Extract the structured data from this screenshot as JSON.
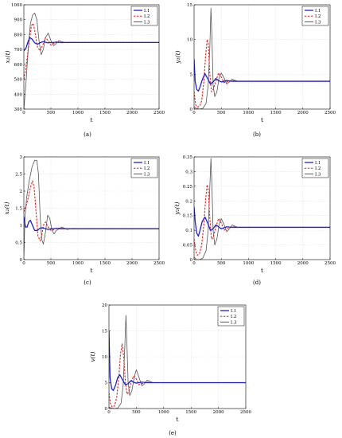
{
  "chart_data": [
    {
      "type": "line",
      "caption": "(a)",
      "ylabel": "x₁(t)",
      "xlabel": "t",
      "xlim": [
        0,
        2500
      ],
      "ylim": [
        300,
        1000
      ],
      "xticks": [
        0,
        500,
        1000,
        1500,
        2000,
        2500
      ],
      "yticks": [
        300,
        400,
        500,
        600,
        700,
        800,
        900,
        1000
      ],
      "grid": true,
      "legend": "top-right",
      "series": [
        {
          "name": "I.1",
          "color": "#1f1fcf",
          "dash": "solid",
          "x": [
            0,
            40,
            80,
            110,
            150,
            200,
            250,
            300,
            350,
            400,
            450,
            500,
            600,
            700,
            800,
            1000,
            1500,
            2500
          ],
          "y": [
            690,
            710,
            755,
            780,
            770,
            745,
            735,
            745,
            752,
            748,
            744,
            747,
            748,
            747,
            747,
            747,
            747,
            747
          ]
        },
        {
          "name": "I.2",
          "color": "#e02020",
          "dash": "dashed",
          "x": [
            0,
            30,
            60,
            100,
            140,
            170,
            200,
            250,
            300,
            350,
            400,
            450,
            500,
            550,
            600,
            700,
            800,
            1000,
            1500,
            2500
          ],
          "y": [
            500,
            560,
            640,
            760,
            860,
            875,
            830,
            720,
            690,
            730,
            780,
            760,
            730,
            740,
            752,
            745,
            748,
            747,
            747,
            747
          ]
        },
        {
          "name": "I.3",
          "color": "#555555",
          "dash": "solid",
          "x": [
            0,
            40,
            80,
            120,
            160,
            200,
            240,
            280,
            320,
            360,
            400,
            450,
            500,
            550,
            600,
            650,
            700,
            800,
            900,
            1000,
            1500,
            2500
          ],
          "y": [
            300,
            480,
            700,
            870,
            930,
            945,
            900,
            760,
            665,
            700,
            780,
            810,
            760,
            725,
            740,
            760,
            752,
            744,
            748,
            747,
            747,
            747
          ]
        }
      ]
    },
    {
      "type": "line",
      "caption": "(b)",
      "ylabel": "y₁(t)",
      "xlabel": "t",
      "xlim": [
        0,
        2500
      ],
      "ylim": [
        0,
        15
      ],
      "xticks": [
        0,
        500,
        1000,
        1500,
        2000,
        2500
      ],
      "yticks": [
        0,
        5,
        10,
        15
      ],
      "grid": true,
      "legend": "top-right",
      "series": [
        {
          "name": "I.1",
          "color": "#1f1fcf",
          "dash": "solid",
          "x": [
            0,
            20,
            50,
            80,
            110,
            150,
            200,
            250,
            300,
            350,
            400,
            450,
            500,
            600,
            700,
            800,
            1000,
            1500,
            2500
          ],
          "y": [
            7.2,
            4.0,
            2.8,
            2.6,
            3.2,
            4.2,
            5.1,
            4.4,
            3.6,
            3.9,
            4.4,
            4.1,
            3.9,
            4.1,
            4.0,
            4.0,
            4.0,
            4.0,
            4.0
          ]
        },
        {
          "name": "I.2",
          "color": "#e02020",
          "dash": "dashed",
          "x": [
            0,
            30,
            60,
            100,
            140,
            180,
            210,
            240,
            260,
            290,
            320,
            350,
            400,
            450,
            500,
            550,
            600,
            700,
            800,
            1000,
            1500,
            2500
          ],
          "y": [
            2.5,
            0.6,
            0.3,
            0.4,
            1.2,
            4.0,
            7.5,
            10.0,
            9.5,
            5.0,
            2.5,
            2.8,
            4.0,
            5.2,
            4.6,
            3.8,
            3.9,
            4.1,
            4.0,
            4.0,
            4.0,
            4.0
          ]
        },
        {
          "name": "I.3",
          "color": "#555555",
          "dash": "solid",
          "x": [
            0,
            40,
            100,
            160,
            220,
            260,
            290,
            310,
            330,
            350,
            380,
            420,
            460,
            500,
            550,
            600,
            650,
            700,
            800,
            900,
            1000,
            1500,
            2500
          ],
          "y": [
            0.3,
            0.1,
            0.0,
            0.1,
            0.8,
            3.5,
            9.0,
            14.5,
            10.0,
            3.5,
            1.8,
            2.5,
            4.5,
            5.2,
            4.5,
            3.6,
            3.9,
            4.3,
            4.0,
            4.0,
            4.0,
            4.0,
            4.0
          ]
        }
      ]
    },
    {
      "type": "line",
      "caption": "(c)",
      "ylabel": "x₂(t)",
      "xlabel": "t",
      "xlim": [
        0,
        2500
      ],
      "ylim": [
        0,
        3
      ],
      "xticks": [
        0,
        500,
        1000,
        1500,
        2000,
        2500
      ],
      "yticks": [
        0,
        0.5,
        1,
        1.5,
        2,
        2.5,
        3
      ],
      "grid": true,
      "legend": "top-right",
      "series": [
        {
          "name": "I.1",
          "color": "#1f1fcf",
          "dash": "solid",
          "x": [
            0,
            30,
            60,
            90,
            120,
            160,
            200,
            250,
            300,
            350,
            400,
            450,
            500,
            600,
            700,
            800,
            1000,
            1500,
            2500
          ],
          "y": [
            1.25,
            0.95,
            0.95,
            1.1,
            1.15,
            1.0,
            0.85,
            0.85,
            0.92,
            0.93,
            0.9,
            0.88,
            0.9,
            0.91,
            0.9,
            0.9,
            0.9,
            0.9,
            0.9
          ]
        },
        {
          "name": "I.2",
          "color": "#e02020",
          "dash": "dashed",
          "x": [
            0,
            40,
            80,
            120,
            160,
            190,
            220,
            260,
            300,
            330,
            360,
            400,
            450,
            500,
            550,
            600,
            700,
            800,
            1000,
            1500,
            2500
          ],
          "y": [
            1.4,
            1.55,
            1.8,
            2.1,
            2.3,
            2.1,
            1.5,
            0.7,
            0.55,
            0.7,
            1.0,
            1.1,
            0.95,
            0.85,
            0.87,
            0.92,
            0.91,
            0.9,
            0.9,
            0.9,
            0.9
          ]
        },
        {
          "name": "I.3",
          "color": "#555555",
          "dash": "solid",
          "x": [
            0,
            20,
            50,
            100,
            150,
            200,
            240,
            270,
            300,
            330,
            360,
            400,
            440,
            480,
            520,
            560,
            600,
            700,
            800,
            900,
            1000,
            1500,
            2500
          ],
          "y": [
            0.1,
            1.2,
            1.8,
            2.3,
            2.7,
            2.9,
            2.9,
            2.5,
            1.3,
            0.6,
            0.45,
            0.8,
            1.3,
            1.2,
            0.85,
            0.75,
            0.85,
            0.95,
            0.88,
            0.91,
            0.9,
            0.9,
            0.9
          ]
        }
      ]
    },
    {
      "type": "line",
      "caption": "(d)",
      "ylabel": "y₂(t)",
      "xlabel": "t",
      "xlim": [
        0,
        2500
      ],
      "ylim": [
        0,
        0.35
      ],
      "xticks": [
        0,
        500,
        1000,
        1500,
        2000,
        2500
      ],
      "yticks": [
        0,
        0.05,
        0.1,
        0.15,
        0.2,
        0.25,
        0.3,
        0.35
      ],
      "grid": true,
      "legend": "top-right",
      "series": [
        {
          "name": "I.1",
          "color": "#1f1fcf",
          "dash": "solid",
          "x": [
            0,
            20,
            50,
            80,
            110,
            150,
            200,
            250,
            300,
            350,
            400,
            450,
            500,
            600,
            700,
            800,
            1000,
            1500,
            2500
          ],
          "y": [
            0.18,
            0.13,
            0.09,
            0.08,
            0.1,
            0.13,
            0.145,
            0.125,
            0.1,
            0.105,
            0.118,
            0.112,
            0.105,
            0.112,
            0.11,
            0.11,
            0.11,
            0.11,
            0.11
          ]
        },
        {
          "name": "I.2",
          "color": "#e02020",
          "dash": "dashed",
          "x": [
            0,
            30,
            60,
            100,
            140,
            180,
            210,
            240,
            260,
            290,
            320,
            350,
            400,
            450,
            500,
            550,
            600,
            700,
            800,
            1000,
            1500,
            2500
          ],
          "y": [
            0.07,
            0.03,
            0.015,
            0.02,
            0.05,
            0.12,
            0.2,
            0.255,
            0.24,
            0.14,
            0.07,
            0.075,
            0.11,
            0.14,
            0.125,
            0.1,
            0.105,
            0.112,
            0.11,
            0.11,
            0.11,
            0.11
          ]
        },
        {
          "name": "I.3",
          "color": "#555555",
          "dash": "solid",
          "x": [
            0,
            40,
            100,
            160,
            220,
            260,
            290,
            310,
            330,
            350,
            380,
            420,
            460,
            500,
            550,
            600,
            650,
            700,
            800,
            900,
            1000,
            1500,
            2500
          ],
          "y": [
            0.01,
            0.0,
            0.0,
            0.005,
            0.03,
            0.1,
            0.25,
            0.345,
            0.24,
            0.1,
            0.05,
            0.07,
            0.12,
            0.14,
            0.12,
            0.095,
            0.105,
            0.118,
            0.11,
            0.11,
            0.11,
            0.11,
            0.11
          ]
        }
      ]
    },
    {
      "type": "line",
      "caption": "(e)",
      "ylabel": "v(t)",
      "xlabel": "t",
      "xlim": [
        0,
        2500
      ],
      "ylim": [
        0,
        20
      ],
      "xticks": [
        0,
        500,
        1000,
        1500,
        2000,
        2500
      ],
      "yticks": [
        0,
        5,
        10,
        15,
        20
      ],
      "grid": true,
      "legend": "top-right",
      "series": [
        {
          "name": "I.1",
          "color": "#1f1fcf",
          "dash": "solid",
          "x": [
            0,
            20,
            50,
            80,
            120,
            160,
            200,
            250,
            300,
            350,
            400,
            450,
            500,
            600,
            700,
            800,
            1000,
            1500,
            2500
          ],
          "y": [
            15.0,
            6.0,
            3.8,
            3.5,
            4.5,
            6.0,
            6.5,
            5.5,
            4.6,
            4.8,
            5.4,
            5.1,
            4.9,
            5.1,
            5.0,
            5.0,
            5.0,
            5.0,
            5.0
          ]
        },
        {
          "name": "I.2",
          "color": "#e02020",
          "dash": "dashed",
          "x": [
            0,
            30,
            60,
            100,
            140,
            180,
            210,
            240,
            270,
            300,
            330,
            360,
            400,
            450,
            500,
            550,
            600,
            700,
            800,
            1000,
            1500,
            2500
          ],
          "y": [
            3.0,
            0.8,
            0.3,
            0.5,
            2.0,
            6.0,
            10.5,
            12.5,
            10.0,
            5.0,
            2.8,
            3.2,
            5.0,
            6.3,
            5.7,
            4.6,
            4.8,
            5.1,
            5.0,
            5.0,
            5.0,
            5.0
          ]
        },
        {
          "name": "I.3",
          "color": "#555555",
          "dash": "solid",
          "x": [
            0,
            40,
            100,
            160,
            220,
            260,
            290,
            310,
            330,
            350,
            380,
            420,
            460,
            500,
            550,
            600,
            650,
            700,
            800,
            900,
            1000,
            1500,
            2500
          ],
          "y": [
            0.3,
            0.1,
            0.0,
            0.1,
            1.0,
            4.5,
            12.0,
            18.0,
            12.0,
            5.0,
            2.5,
            3.5,
            6.0,
            7.5,
            6.0,
            4.4,
            4.8,
            5.5,
            5.0,
            5.0,
            5.0,
            5.0,
            5.0
          ]
        }
      ]
    }
  ]
}
